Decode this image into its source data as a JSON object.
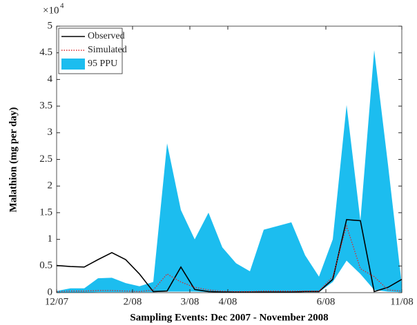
{
  "chart_data": {
    "type": "line",
    "x_label": "Sampling Events: Dec 2007 - November 2008",
    "y_label": "Malathion (mg per day)",
    "y_multiplier": "×10",
    "y_exponent": "4",
    "x": [
      0,
      1,
      2,
      3,
      4,
      5,
      6,
      7,
      8,
      9,
      10,
      11,
      12,
      13,
      14,
      15,
      16,
      17,
      18,
      19,
      20,
      21,
      22,
      23,
      24,
      25
    ],
    "xlim": [
      0,
      25
    ],
    "xticks": [
      {
        "value": 0,
        "label": "12/07"
      },
      {
        "value": 5.5,
        "label": "2/08"
      },
      {
        "value": 9.65,
        "label": "3/08"
      },
      {
        "value": 12.4,
        "label": "4/08"
      },
      {
        "value": 19.5,
        "label": "6/08"
      },
      {
        "value": 25,
        "label": "11/08"
      }
    ],
    "ylim": [
      0,
      5
    ],
    "yticks": [
      0,
      0.5,
      1,
      1.5,
      2,
      2.5,
      3,
      3.5,
      4,
      4.5,
      5
    ],
    "legend": "upper left",
    "series": [
      {
        "name": "95 PPU",
        "kind": "band",
        "color": "#1cbdef",
        "lower": [
          0,
          0,
          0,
          0.01,
          0.01,
          0.01,
          0.01,
          0.01,
          0.02,
          0.02,
          0.02,
          0.01,
          0.01,
          0.01,
          0.01,
          0.01,
          0.01,
          0.01,
          0.01,
          0.01,
          0.2,
          0.6,
          0.35,
          0.05,
          0.02,
          0.01
        ],
        "upper": [
          0.03,
          0.08,
          0.08,
          0.27,
          0.28,
          0.18,
          0.12,
          0.2,
          2.8,
          1.55,
          1.0,
          1.5,
          0.85,
          0.55,
          0.4,
          1.18,
          1.25,
          1.32,
          0.7,
          0.3,
          1.0,
          3.52,
          1.35,
          4.55,
          2.4,
          0.15
        ]
      },
      {
        "name": "Observed",
        "kind": "solid",
        "color": "#000000",
        "values": [
          0.51,
          0.49,
          0.48,
          0.62,
          0.75,
          0.62,
          0.35,
          0.02,
          0.03,
          0.48,
          0.06,
          0.02,
          0.01,
          0.01,
          0.01,
          0.01,
          0.01,
          0.01,
          0.02,
          0.02,
          0.25,
          1.37,
          1.35,
          0.02,
          0.1,
          0.25
        ]
      },
      {
        "name": "Simulated",
        "kind": "dotted",
        "color": "#d9262b",
        "values": [
          0.02,
          0.03,
          0.03,
          0.04,
          0.04,
          0.03,
          0.02,
          0.05,
          0.35,
          0.2,
          0.1,
          0.05,
          0.03,
          0.02,
          0.02,
          0.03,
          0.03,
          0.03,
          0.03,
          0.03,
          0.3,
          1.25,
          0.45,
          0.3,
          0.05,
          0.03
        ]
      }
    ]
  }
}
